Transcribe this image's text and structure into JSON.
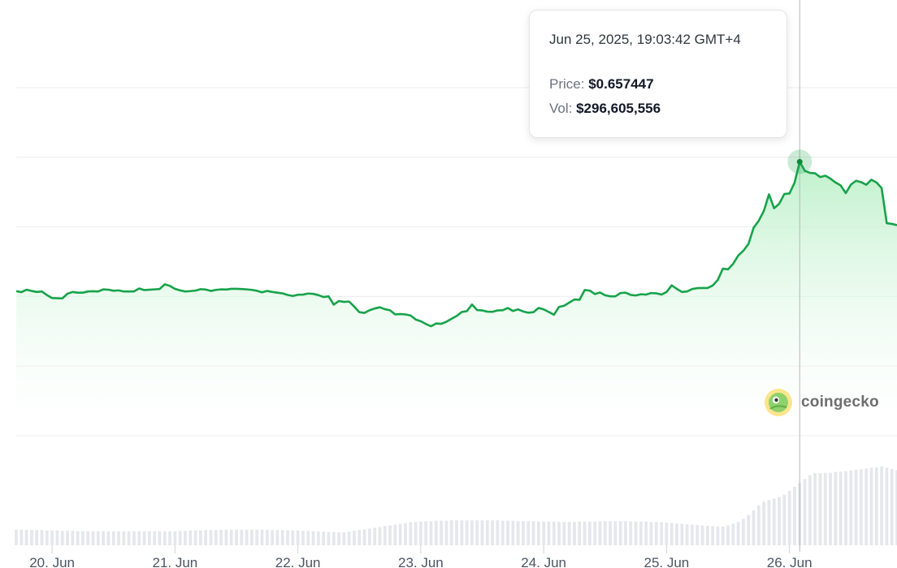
{
  "tooltip": {
    "timestamp": "Jun 25, 2025, 19:03:42 GMT+4",
    "price_label": "Price:",
    "price_value": "$0.657447",
    "volume_label": "Vol:",
    "volume_value": "$296,605,556"
  },
  "watermark": {
    "text": "coingecko",
    "icon": "coingecko-gecko-icon"
  },
  "colors": {
    "line": "#16a34a",
    "area_top": "#bbf0c8",
    "volume_bar": "#e5e7eb",
    "crosshair": "#b7b7b7",
    "gridline": "#ececec",
    "tick_label": "#4b5563"
  },
  "chart_data": {
    "type": "line",
    "title": "",
    "xlabel": "",
    "ylabel": "",
    "x_ticks": [
      "20. Jun",
      "21. Jun",
      "22. Jun",
      "23. Jun",
      "24. Jun",
      "25. Jun",
      "26. Jun"
    ],
    "price": {
      "start": "2025-06-19T17:00",
      "interval_hours": 1,
      "ylim": [
        0.5,
        0.7
      ],
      "grid": true,
      "values": [
        0.5831,
        0.5825,
        0.5839,
        0.5832,
        0.5826,
        0.5829,
        0.5808,
        0.5791,
        0.579,
        0.5789,
        0.5816,
        0.5826,
        0.5822,
        0.5822,
        0.5829,
        0.583,
        0.5829,
        0.5841,
        0.5839,
        0.5833,
        0.5835,
        0.5829,
        0.5829,
        0.5829,
        0.5846,
        0.5837,
        0.5839,
        0.5841,
        0.5843,
        0.587,
        0.5861,
        0.5844,
        0.5835,
        0.5829,
        0.5831,
        0.5834,
        0.5842,
        0.584,
        0.5832,
        0.5838,
        0.5841,
        0.584,
        0.5844,
        0.5844,
        0.5843,
        0.5841,
        0.5838,
        0.5833,
        0.5824,
        0.5832,
        0.5826,
        0.5822,
        0.5818,
        0.5809,
        0.5803,
        0.581,
        0.5811,
        0.5817,
        0.5815,
        0.5808,
        0.5797,
        0.5801,
        0.5753,
        0.5774,
        0.5769,
        0.5771,
        0.5742,
        0.571,
        0.5706,
        0.5721,
        0.5731,
        0.5738,
        0.5727,
        0.5721,
        0.5697,
        0.5699,
        0.5697,
        0.5691,
        0.5668,
        0.5658,
        0.5642,
        0.5629,
        0.5645,
        0.5643,
        0.5655,
        0.5672,
        0.5688,
        0.5711,
        0.5716,
        0.5754,
        0.5722,
        0.572,
        0.5713,
        0.5712,
        0.572,
        0.5721,
        0.5734,
        0.5717,
        0.5726,
        0.5714,
        0.5707,
        0.571,
        0.5734,
        0.5726,
        0.5711,
        0.5695,
        0.574,
        0.5747,
        0.5765,
        0.5783,
        0.5781,
        0.5837,
        0.5834,
        0.5814,
        0.5823,
        0.5807,
        0.5801,
        0.5801,
        0.582,
        0.5822,
        0.5809,
        0.5806,
        0.5813,
        0.5811,
        0.582,
        0.5818,
        0.5811,
        0.5826,
        0.5864,
        0.5844,
        0.5826,
        0.5829,
        0.5843,
        0.5848,
        0.5849,
        0.5849,
        0.5863,
        0.5895,
        0.596,
        0.5956,
        0.5988,
        0.6035,
        0.6063,
        0.6102,
        0.6195,
        0.6235,
        0.6292,
        0.6387,
        0.6307,
        0.6333,
        0.6389,
        0.6392,
        0.6454,
        0.6574,
        0.6522,
        0.651,
        0.6508,
        0.6486,
        0.6494,
        0.6477,
        0.6455,
        0.6438,
        0.6394,
        0.6443,
        0.6465,
        0.6457,
        0.6442,
        0.6471,
        0.6455,
        0.6423,
        0.6221,
        0.6217,
        0.621
      ]
    },
    "volume": {
      "values": [
        4.0,
        4.0,
        4.0,
        3.9,
        3.9,
        3.9,
        3.8,
        3.8,
        3.8,
        3.7,
        3.7,
        3.7,
        3.6,
        3.6,
        3.6,
        3.6,
        3.6,
        3.6,
        3.6,
        3.6,
        3.6,
        3.6,
        3.6,
        3.6,
        3.6,
        3.6,
        3.6,
        3.6,
        3.6,
        3.6,
        3.6,
        3.6,
        3.7,
        3.7,
        3.8,
        3.8,
        3.8,
        3.9,
        3.9,
        3.9,
        4.0,
        4.0,
        4.0,
        4.0,
        4.0,
        4.0,
        4.0,
        4.0,
        4.0,
        4.0,
        3.9,
        3.9,
        3.9,
        3.8,
        3.8,
        3.8,
        3.7,
        3.7,
        3.6,
        3.5,
        3.5,
        3.4,
        3.4,
        3.3,
        3.3,
        3.5,
        3.7,
        3.9,
        4.1,
        4.3,
        4.5,
        4.7,
        4.9,
        5.1,
        5.3,
        5.5,
        5.7,
        5.9,
        6.0,
        6.1,
        6.2,
        6.2,
        6.3,
        6.3,
        6.3,
        6.4,
        6.4,
        6.4,
        6.4,
        6.4,
        6.4,
        6.4,
        6.4,
        6.4,
        6.4,
        6.3,
        6.3,
        6.3,
        6.2,
        6.2,
        6.2,
        6.2,
        6.1,
        6.1,
        6.1,
        6.1,
        6.0,
        6.0,
        6.0,
        6.0,
        6.1,
        6.1,
        6.1,
        6.1,
        6.2,
        6.2,
        6.2,
        6.2,
        6.2,
        6.2,
        6.1,
        6.1,
        6.1,
        6.1,
        6.0,
        6.0,
        5.9,
        5.8,
        5.7,
        5.6,
        5.5,
        5.4,
        5.3,
        5.2,
        5.1,
        5.0,
        4.9,
        4.8,
        4.8,
        5.1,
        5.5,
        6.0,
        6.8,
        7.8,
        9.0,
        10.2,
        11.2,
        11.6,
        12.0,
        12.4,
        13.0,
        14.0,
        15.0,
        16.0,
        17.0,
        18.0,
        18.5,
        18.5,
        18.6,
        18.6,
        18.8,
        18.9,
        19.0,
        19.2,
        19.4,
        19.5,
        19.7,
        19.9,
        20.0,
        20.2,
        19.9,
        19.6,
        19.3,
        19.3,
        19.2
      ]
    }
  }
}
